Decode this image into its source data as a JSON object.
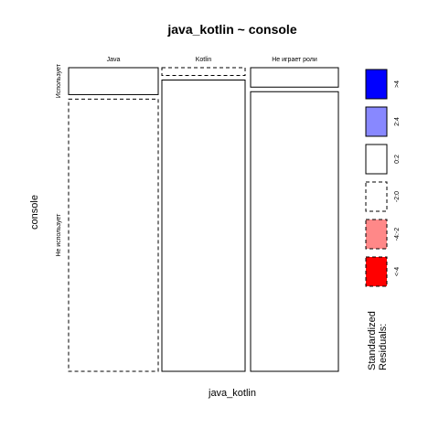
{
  "chart_data": {
    "type": "mosaic",
    "title": "java_kotlin ~ console",
    "xlabel": "java_kotlin",
    "ylabel": "console",
    "columns": [
      "Java",
      "Kotlin",
      "Не играет роли"
    ],
    "rows": [
      "Использует",
      "Не использует"
    ],
    "column_proportions": [
      0.333,
      0.3,
      0.367
    ],
    "cells": [
      {
        "column": "Java",
        "row": "Использует",
        "proportion": 0.09,
        "residual_band": "0:2"
      },
      {
        "column": "Java",
        "row": "Не использует",
        "proportion": 0.91,
        "residual_band": "-2:0"
      },
      {
        "column": "Kotlin",
        "row": "Использует",
        "proportion": 0.026,
        "residual_band": "-2:0"
      },
      {
        "column": "Kotlin",
        "row": "Не использует",
        "proportion": 0.974,
        "residual_band": "0:2"
      },
      {
        "column": "Не играет роли",
        "row": "Использует",
        "proportion": 0.065,
        "residual_band": "0:2"
      },
      {
        "column": "Не играет роли",
        "row": "Не использует",
        "proportion": 0.935,
        "residual_band": "0:2"
      }
    ],
    "legend": {
      "title_line1": "Standardized",
      "title_line2": "Residuals:",
      "entries": [
        {
          "label": ">4",
          "fill": "#0000ff",
          "dashed": false
        },
        {
          "label": "2:4",
          "fill": "#8888ff",
          "dashed": false
        },
        {
          "label": "0:2",
          "fill": "#ffffff",
          "dashed": false
        },
        {
          "label": "-2:0",
          "fill": "#ffffff",
          "dashed": true
        },
        {
          "label": "-4:-2",
          "fill": "#ff8888",
          "dashed": true
        },
        {
          "label": "<-4",
          "fill": "#ff0000",
          "dashed": true
        }
      ]
    }
  }
}
